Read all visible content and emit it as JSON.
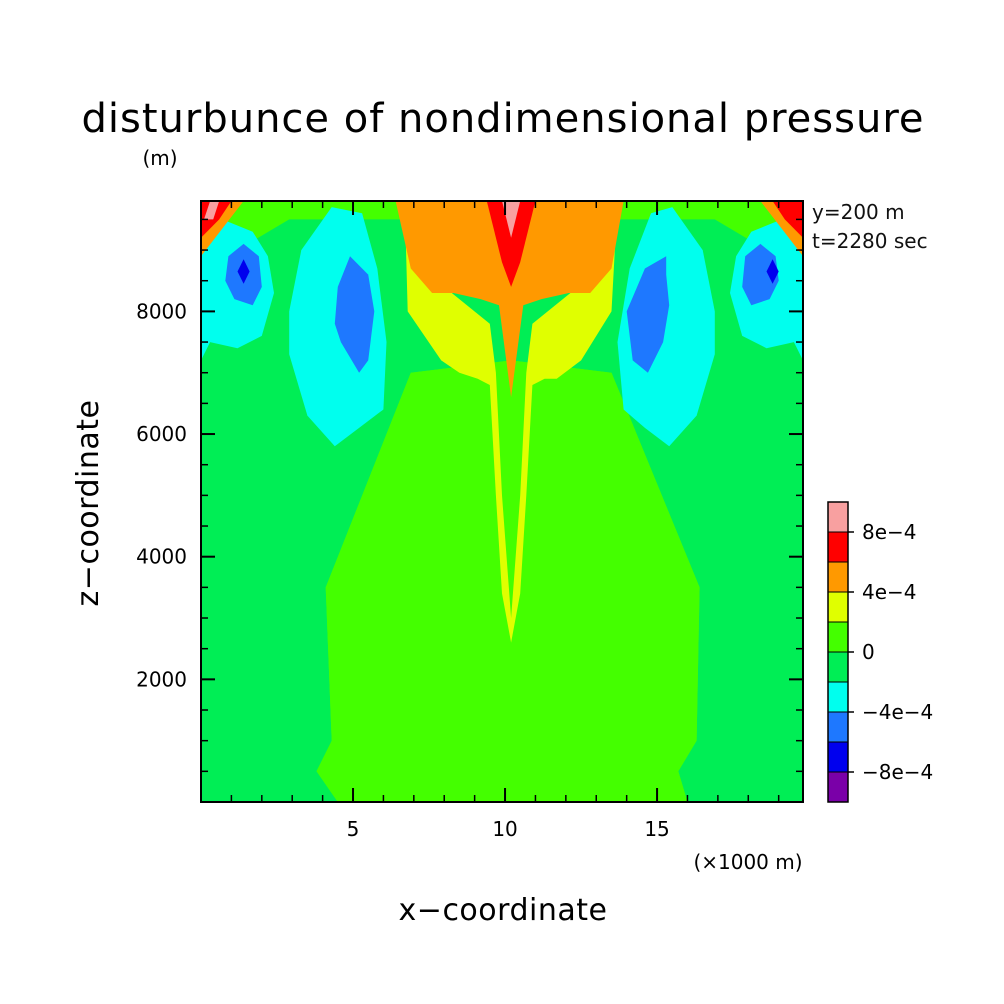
{
  "chart_data": {
    "type": "heatmap",
    "title": "disturbunce of nondimensional pressure",
    "units_label": "(m)",
    "xlabel": "x−coordinate",
    "ylabel": "z−coordinate",
    "x_unit_note": "(×1000 m)",
    "annotations": [
      "y=200 m",
      "t=2280 sec"
    ],
    "xlim": [
      0,
      19.8
    ],
    "ylim": [
      0,
      9800
    ],
    "x_ticks": [
      {
        "value": 5,
        "label": "5"
      },
      {
        "value": 10,
        "label": "10"
      },
      {
        "value": 15,
        "label": "15"
      }
    ],
    "y_ticks": [
      {
        "value": 2000,
        "label": "2000"
      },
      {
        "value": 4000,
        "label": "4000"
      },
      {
        "value": 6000,
        "label": "6000"
      },
      {
        "value": 8000,
        "label": "8000"
      }
    ],
    "colorbar": {
      "levels": [
        {
          "from": -0.001,
          "to": -0.0008,
          "color": "#7a00a8"
        },
        {
          "from": -0.0008,
          "to": -0.0006,
          "color": "#0000ee"
        },
        {
          "from": -0.0006,
          "to": -0.0004,
          "color": "#1e78ff"
        },
        {
          "from": -0.0004,
          "to": -0.0002,
          "color": "#00ffee"
        },
        {
          "from": -0.0002,
          "to": 0,
          "color": "#00ee55"
        },
        {
          "from": 0,
          "to": 0.0002,
          "color": "#44ff00"
        },
        {
          "from": 0.0002,
          "to": 0.0004,
          "color": "#e0ff00"
        },
        {
          "from": 0.0004,
          "to": 0.0006,
          "color": "#ff9900"
        },
        {
          "from": 0.0006,
          "to": 0.0008,
          "color": "#ff0000"
        },
        {
          "from": 0.0008,
          "to": 0.001,
          "color": "#f8a0a0"
        }
      ],
      "tick_labels": [
        {
          "value": -0.0008,
          "label": "−8e−4"
        },
        {
          "value": -0.0004,
          "label": "−4e−4"
        },
        {
          "value": 0,
          "label": "0"
        },
        {
          "value": 0.0004,
          "label": "4e−4"
        },
        {
          "value": 0.0008,
          "label": "8e−4"
        }
      ]
    },
    "regions": [
      {
        "level": "0 to 2e-4",
        "color": "#44ff00",
        "x": [
          0,
          0,
          0.7,
          3.3,
          4.9,
          7.0,
          8.6,
          9.3,
          10.2,
          11.1,
          11.8,
          13.4,
          15.1,
          16.7,
          19.2,
          19.8,
          19.8
        ],
        "z": [
          0,
          9800,
          9800,
          9400,
          9800,
          9800,
          9700,
          9500,
          9600,
          9500,
          9700,
          9800,
          9800,
          9400,
          9800,
          9800,
          0
        ]
      },
      {
        "level": "-2e-4 to 0",
        "color": "#00ee55",
        "x": [
          0,
          0,
          1.2,
          2.9,
          4.9,
          6.8,
          9.4,
          10.2,
          11.0,
          13.6,
          15.1,
          16.9,
          18.6,
          19.8,
          19.8,
          16.0,
          15.7,
          16.3,
          16.4,
          13.5,
          10.2,
          6.9,
          4.1,
          4.3,
          3.8,
          4.5
        ],
        "z": [
          0,
          9800,
          9000,
          9500,
          9500,
          9500,
          9200,
          9300,
          9200,
          9500,
          9500,
          9500,
          9000,
          9800,
          0,
          0,
          500,
          1000,
          3500,
          7000,
          7200,
          7000,
          3500,
          1000,
          500,
          0
        ]
      },
      {
        "level": "0 to 2e-4 (inner)",
        "color": "#44ff00",
        "x": [
          4.5,
          3.8,
          4.3,
          4.1,
          6.9,
          10.2,
          13.5,
          16.4,
          16.3,
          15.7,
          16.0
        ],
        "z": [
          0,
          500,
          1000,
          3500,
          7000,
          7200,
          7000,
          3500,
          1000,
          500,
          0
        ]
      },
      {
        "level": "2e-4 to 4e-4",
        "color": "#e0ff00",
        "x": [
          6.7,
          7.0,
          8.0,
          9.5,
          9.7,
          9.9,
          10.2,
          10.5,
          10.7,
          10.9,
          12.4,
          13.5,
          13.7,
          13.5,
          12.5,
          11.7,
          11.3,
          10.9,
          10.7,
          10.5,
          10.2,
          9.9,
          9.7,
          9.5,
          9.1,
          8.5,
          7.9,
          6.8
        ],
        "z": [
          9800,
          9000,
          8400,
          7800,
          7000,
          5000,
          3000,
          5000,
          7000,
          7800,
          8400,
          9000,
          9800,
          8000,
          7200,
          6900,
          6900,
          6800,
          5000,
          3400,
          2600,
          3400,
          5000,
          6800,
          6900,
          7000,
          7200,
          8000
        ]
      },
      {
        "level": "4e-4 to 6e-4",
        "color": "#ff9900",
        "x": [
          6.4,
          6.9,
          7.6,
          8.3,
          9.2,
          9.8,
          10.2,
          10.6,
          11.2,
          12.1,
          12.8,
          13.5,
          13.9
        ],
        "z": [
          9800,
          8700,
          8300,
          8300,
          8200,
          8100,
          6600,
          8100,
          8200,
          8300,
          8300,
          8700,
          9800
        ]
      },
      {
        "level": "6e-4 to 8e-4",
        "color": "#ff0000",
        "x": [
          9.4,
          9.9,
          10.2,
          10.5,
          11.0
        ],
        "z": [
          9800,
          8800,
          8400,
          8800,
          9800
        ]
      },
      {
        "level": "8e-4 to 1e-3",
        "color": "#f8a0a0",
        "x": [
          9.9,
          10.2,
          10.5
        ],
        "z": [
          9800,
          9200,
          9800
        ]
      },
      {
        "level": "-4e-4 to -2e-4",
        "color": "#00ffee",
        "x": [
          0,
          0.7,
          1.7,
          2.2,
          2.4,
          2.0,
          1.2,
          0.3,
          0
        ],
        "z": [
          9100,
          9500,
          9300,
          8900,
          8300,
          7600,
          7400,
          7500,
          7200
        ]
      },
      {
        "level": "-4e-4 to -2e-4",
        "color": "#00ffee",
        "x": [
          4.3,
          3.3,
          2.9,
          2.9,
          3.5,
          4.4,
          5.2,
          6.0,
          6.1,
          5.8,
          5.3
        ],
        "z": [
          9700,
          9000,
          8000,
          7300,
          6300,
          5800,
          6100,
          6400,
          7500,
          8700,
          9600
        ]
      },
      {
        "level": "-4e-4 to -2e-4",
        "color": "#00ffee",
        "x": [
          15.5,
          16.5,
          16.9,
          16.9,
          16.3,
          15.4,
          14.6,
          13.9,
          13.7,
          14.1,
          14.8
        ],
        "z": [
          9700,
          9000,
          8000,
          7300,
          6300,
          5800,
          6100,
          6400,
          7500,
          8700,
          9600
        ]
      },
      {
        "level": "-4e-4 to -2e-4",
        "color": "#00ffee",
        "x": [
          19.8,
          19.1,
          18.1,
          17.6,
          17.4,
          17.8,
          18.6,
          19.5,
          19.8
        ],
        "z": [
          9100,
          9500,
          9300,
          8900,
          8300,
          7600,
          7400,
          7500,
          7200
        ]
      },
      {
        "level": "-6e-4 to -4e-4",
        "color": "#1e78ff",
        "x": [
          0.9,
          1.4,
          1.9,
          2.0,
          1.7,
          1.1,
          0.8
        ],
        "z": [
          8900,
          9100,
          8900,
          8400,
          8100,
          8200,
          8500
        ]
      },
      {
        "level": "-6e-4 to -4e-4",
        "color": "#1e78ff",
        "x": [
          4.9,
          4.5,
          4.4,
          4.6,
          5.2,
          5.5,
          5.7,
          5.5
        ],
        "z": [
          8900,
          8400,
          7800,
          7500,
          7000,
          7200,
          8000,
          8600
        ]
      },
      {
        "level": "-6e-4 to -4e-4",
        "color": "#1e78ff",
        "x": [
          15.3,
          14.6,
          14.0,
          14.2,
          14.7,
          15.2,
          15.4,
          15.3
        ],
        "z": [
          8900,
          8700,
          8000,
          7200,
          7000,
          7500,
          8100,
          8600
        ]
      },
      {
        "level": "-6e-4 to -4e-4",
        "color": "#1e78ff",
        "x": [
          18.9,
          18.4,
          17.9,
          17.8,
          18.1,
          18.7,
          19.0
        ],
        "z": [
          8900,
          9100,
          8900,
          8400,
          8100,
          8200,
          8500
        ]
      },
      {
        "level": "-8e-4 to -6e-4",
        "color": "#0000ee",
        "x": [
          1.2,
          1.4,
          1.6,
          1.4
        ],
        "z": [
          8650,
          8850,
          8650,
          8450
        ]
      },
      {
        "level": "-8e-4 to -6e-4",
        "color": "#0000ee",
        "x": [
          18.6,
          18.8,
          19.0,
          18.8
        ],
        "z": [
          8650,
          8850,
          8650,
          8450
        ]
      },
      {
        "level": "4e-4 to 6e-4 (corner)",
        "color": "#ff9900",
        "x": [
          0,
          0,
          0.8,
          1.4
        ],
        "z": [
          8900,
          9800,
          9800,
          9800
        ]
      },
      {
        "level": "6e-4 to 8e-4 (corner)",
        "color": "#ff0000",
        "x": [
          0,
          0,
          0.3,
          1.0,
          0.6
        ],
        "z": [
          9200,
          9800,
          9800,
          9800,
          9500
        ]
      },
      {
        "level": "8e-4 to 1e-3 (corner)",
        "color": "#f8a0a0",
        "x": [
          0.1,
          0.3,
          0.6,
          0.4
        ],
        "z": [
          9500,
          9800,
          9800,
          9500
        ]
      },
      {
        "level": "4e-4 to 6e-4 (corner)",
        "color": "#ff9900",
        "x": [
          19.8,
          19.8,
          19.0,
          18.4
        ],
        "z": [
          8900,
          9800,
          9800,
          9800
        ]
      },
      {
        "level": "6e-4 to 8e-4 (corner)",
        "color": "#ff0000",
        "x": [
          19.8,
          19.8,
          19.5,
          18.8,
          19.2
        ],
        "z": [
          9200,
          9800,
          9800,
          9800,
          9500
        ]
      }
    ]
  }
}
